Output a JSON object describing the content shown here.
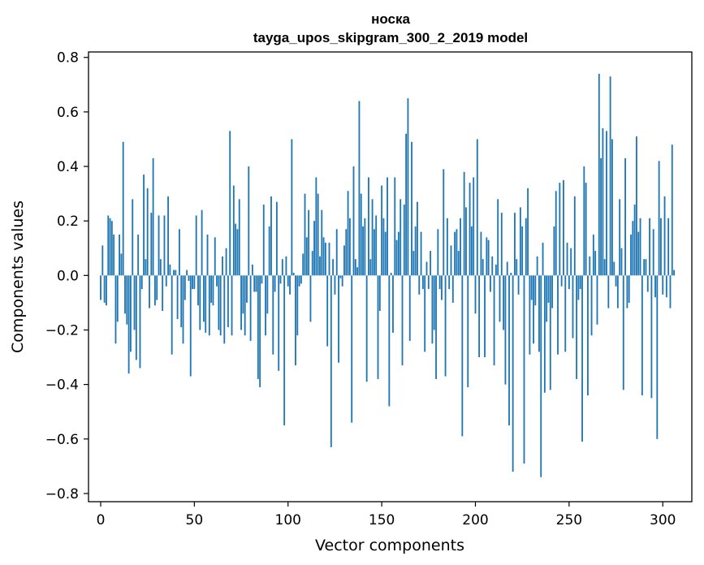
{
  "chart_data": {
    "type": "bar",
    "title": "носка",
    "subtitle": "tayga_upos_skipgram_300_2_2019 model",
    "xlabel": "Vector components",
    "ylabel": "Components values",
    "xlim": [
      -6.5,
      315.5
    ],
    "ylim": [
      -0.83,
      0.82
    ],
    "xticks": [
      0,
      50,
      100,
      150,
      200,
      250,
      300
    ],
    "xtick_labels": [
      "0",
      "50",
      "100",
      "150",
      "200",
      "250",
      "300"
    ],
    "yticks": [
      -0.8,
      -0.6,
      -0.4,
      -0.2,
      0.0,
      0.2,
      0.4,
      0.6,
      0.8
    ],
    "ytick_labels": [
      "−0.8",
      "−0.6",
      "−0.4",
      "−0.2",
      "0.0",
      "0.2",
      "0.4",
      "0.6",
      "0.8"
    ],
    "grid": false,
    "bar_color": "#1f77b4",
    "values": [
      -0.09,
      0.11,
      -0.1,
      -0.11,
      0.22,
      0.21,
      0.2,
      0.15,
      -0.25,
      -0.17,
      0.15,
      0.08,
      0.49,
      -0.14,
      -0.18,
      -0.36,
      -0.28,
      0.28,
      -0.2,
      -0.31,
      0.15,
      -0.34,
      -0.05,
      0.37,
      0.06,
      0.32,
      -0.12,
      0.23,
      0.43,
      -0.11,
      -0.09,
      0.22,
      0.06,
      -0.13,
      0.22,
      -0.04,
      0.29,
      0.04,
      -0.29,
      0.02,
      0.02,
      -0.16,
      0.17,
      -0.19,
      -0.25,
      -0.09,
      0.02,
      -0.02,
      -0.37,
      -0.05,
      -0.05,
      0.22,
      -0.11,
      -0.2,
      0.24,
      -0.17,
      -0.21,
      0.15,
      -0.22,
      -0.1,
      -0.11,
      0.14,
      -0.04,
      -0.2,
      -0.22,
      0.07,
      -0.25,
      0.1,
      -0.19,
      0.53,
      -0.22,
      0.33,
      0.19,
      0.17,
      0.28,
      -0.2,
      -0.14,
      -0.22,
      -0.1,
      0.4,
      -0.24,
      0.04,
      -0.06,
      -0.06,
      -0.38,
      -0.41,
      -0.03,
      0.26,
      -0.22,
      -0.14,
      0.18,
      0.29,
      -0.29,
      -0.06,
      0.27,
      -0.35,
      -0.03,
      0.06,
      -0.55,
      0.07,
      -0.04,
      -0.07,
      0.5,
      0.01,
      -0.33,
      -0.22,
      -0.04,
      -0.03,
      0.08,
      0.3,
      0.14,
      0.24,
      -0.17,
      0.09,
      0.2,
      0.36,
      0.3,
      0.07,
      0.24,
      0.14,
      0.12,
      -0.26,
      0.12,
      -0.63,
      0.06,
      -0.07,
      0.17,
      -0.32,
      -0.01,
      -0.04,
      0.11,
      0.17,
      0.31,
      0.21,
      -0.54,
      0.4,
      0.06,
      0.03,
      0.64,
      0.3,
      0.18,
      0.21,
      -0.39,
      0.36,
      0.06,
      0.28,
      0.17,
      0.22,
      -0.38,
      -0.13,
      0.33,
      0.21,
      0.16,
      0.36,
      -0.48,
      0.01,
      -0.21,
      0.36,
      0.13,
      0.16,
      0.28,
      -0.33,
      0.26,
      0.52,
      0.65,
      -0.24,
      0.49,
      0.09,
      0.18,
      0.27,
      -0.07,
      0.16,
      -0.05,
      -0.28,
      0.05,
      -0.05,
      0.09,
      -0.25,
      -0.2,
      -0.38,
      0.17,
      -0.05,
      -0.09,
      0.39,
      -0.37,
      0.21,
      -0.05,
      0.11,
      -0.1,
      0.16,
      0.17,
      0.09,
      0.21,
      -0.59,
      0.38,
      0.25,
      -0.41,
      0.34,
      0.18,
      0.36,
      -0.14,
      0.5,
      -0.3,
      0.16,
      0.06,
      -0.3,
      0.14,
      0.13,
      -0.06,
      0.07,
      -0.33,
      0.04,
      0.28,
      -0.17,
      0.23,
      -0.2,
      -0.4,
      0.05,
      -0.55,
      0.01,
      -0.72,
      0.23,
      0.06,
      -0.07,
      0.25,
      0.18,
      -0.69,
      0.21,
      0.32,
      -0.29,
      -0.09,
      -0.25,
      -0.11,
      0.07,
      -0.28,
      -0.74,
      0.12,
      -0.43,
      -0.17,
      -0.1,
      -0.42,
      -0.12,
      0.18,
      0.31,
      -0.29,
      0.34,
      -0.04,
      0.35,
      -0.28,
      0.12,
      -0.05,
      0.1,
      -0.23,
      0.29,
      -0.38,
      -0.09,
      -0.05,
      -0.61,
      0.4,
      0.34,
      -0.44,
      0.07,
      -0.22,
      0.15,
      0.09,
      -0.18,
      0.74,
      0.43,
      0.54,
      0.06,
      0.53,
      -0.12,
      0.73,
      0.5,
      0.05,
      -0.04,
      -0.12,
      0.28,
      0.1,
      -0.42,
      0.43,
      -0.12,
      -0.1,
      0.15,
      0.2,
      0.26,
      0.51,
      0.16,
      0.21,
      -0.44,
      0.06,
      0.06,
      -0.06,
      0.21,
      -0.45,
      0.17,
      -0.08,
      -0.6,
      0.42,
      0.21,
      -0.07,
      0.29,
      -0.08,
      0.21,
      -0.12,
      0.48,
      0.02
    ]
  }
}
